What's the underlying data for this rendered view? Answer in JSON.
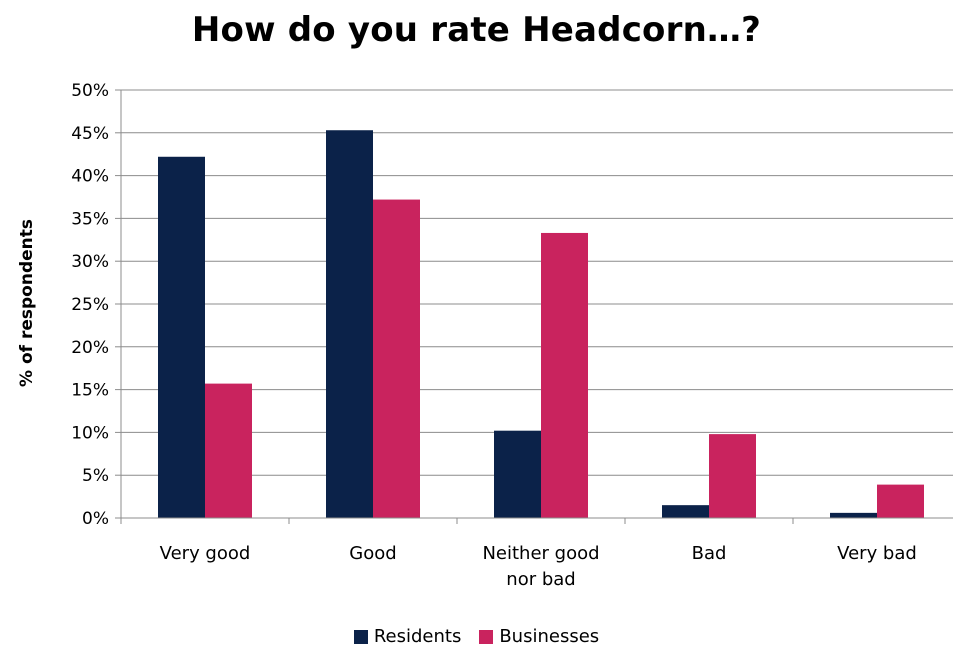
{
  "chart_data": {
    "type": "bar",
    "title": "How do you rate Headcorn…?",
    "ylabel": "% of respondents",
    "xlabel": "",
    "ylim": [
      0,
      50
    ],
    "yticks": [
      "0%",
      "5%",
      "10%",
      "15%",
      "20%",
      "25%",
      "30%",
      "35%",
      "40%",
      "45%",
      "50%"
    ],
    "categories": [
      [
        "Very good"
      ],
      [
        "Good"
      ],
      [
        "Neither good",
        "nor bad"
      ],
      [
        "Bad"
      ],
      [
        "Very bad"
      ]
    ],
    "series": [
      {
        "name": "Residents",
        "color": "#0b2249",
        "values": [
          42.2,
          45.3,
          10.2,
          1.5,
          0.6
        ]
      },
      {
        "name": "Businesses",
        "color": "#c9235e",
        "values": [
          15.7,
          37.2,
          33.3,
          9.8,
          3.9
        ]
      }
    ],
    "grid": true,
    "legend_position": "bottom"
  }
}
